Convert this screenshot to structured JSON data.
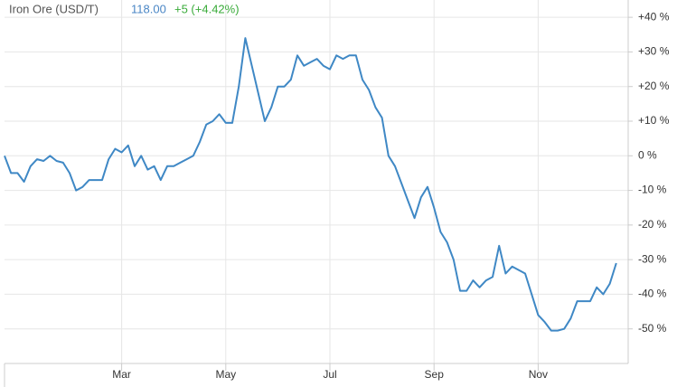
{
  "chart_data": {
    "type": "line",
    "title": "Iron Ore (USD/T)",
    "price": "118.00",
    "change": "+5 (+4.42%)",
    "categories": [
      null,
      null,
      null,
      null,
      null,
      null,
      null,
      null,
      null,
      null,
      null,
      null,
      null,
      null,
      null,
      null,
      null,
      null,
      "Mar",
      null,
      null,
      null,
      null,
      null,
      null,
      null,
      null,
      null,
      null,
      null,
      null,
      null,
      null,
      null,
      "May",
      null,
      null,
      null,
      null,
      null,
      null,
      null,
      null,
      null,
      null,
      null,
      null,
      null,
      null,
      null,
      "Jul",
      null,
      null,
      null,
      null,
      null,
      null,
      null,
      null,
      null,
      null,
      null,
      null,
      null,
      null,
      null,
      "Sep",
      null,
      null,
      null,
      null,
      null,
      null,
      null,
      null,
      null,
      null,
      null,
      null,
      null,
      null,
      null,
      "Nov",
      null,
      null,
      null,
      null,
      null,
      null,
      null,
      null,
      null,
      null,
      null,
      null
    ],
    "series": [
      {
        "name": "Iron Ore (USD/T)",
        "color": "#3f88c5",
        "values": [
          0,
          -5,
          -5,
          -7.5,
          -3,
          -1,
          -1.5,
          0,
          -1.5,
          -2,
          -5,
          -10,
          -9,
          -7,
          -7,
          -7,
          -1,
          2,
          1,
          3,
          -3,
          0,
          -4,
          -3,
          -7,
          -3,
          -3,
          -2,
          -1,
          0,
          4,
          9,
          10,
          12,
          9.5,
          9.5,
          20,
          34,
          26,
          18,
          10,
          14,
          20,
          20,
          22,
          29,
          26,
          27,
          28,
          26,
          25,
          29,
          28,
          29,
          29,
          22,
          19,
          14,
          11,
          0,
          -3,
          -8,
          -13,
          -18,
          -12,
          -9,
          -15,
          -22,
          -25,
          -30,
          -39,
          -39,
          -36,
          -38,
          -36,
          -35,
          -26,
          -34,
          -32,
          -33,
          -34,
          -40,
          -46,
          -48,
          -50.5,
          -50.5,
          -50,
          -47,
          -42,
          -42,
          -42,
          -38,
          -40,
          -37,
          -31
        ]
      }
    ],
    "ylim": [
      -60,
      45
    ],
    "yticks": [
      {
        "value": 40,
        "label": "+40 %"
      },
      {
        "value": 30,
        "label": "+30 %"
      },
      {
        "value": 20,
        "label": "+20 %"
      },
      {
        "value": 10,
        "label": "+10 %"
      },
      {
        "value": 0,
        "label": "0 %"
      },
      {
        "value": -10,
        "label": "-10 %"
      },
      {
        "value": -20,
        "label": "-20 %"
      },
      {
        "value": -30,
        "label": "-30 %"
      },
      {
        "value": -40,
        "label": "-40 %"
      },
      {
        "value": -50,
        "label": "-50 %"
      }
    ],
    "grid": true
  }
}
